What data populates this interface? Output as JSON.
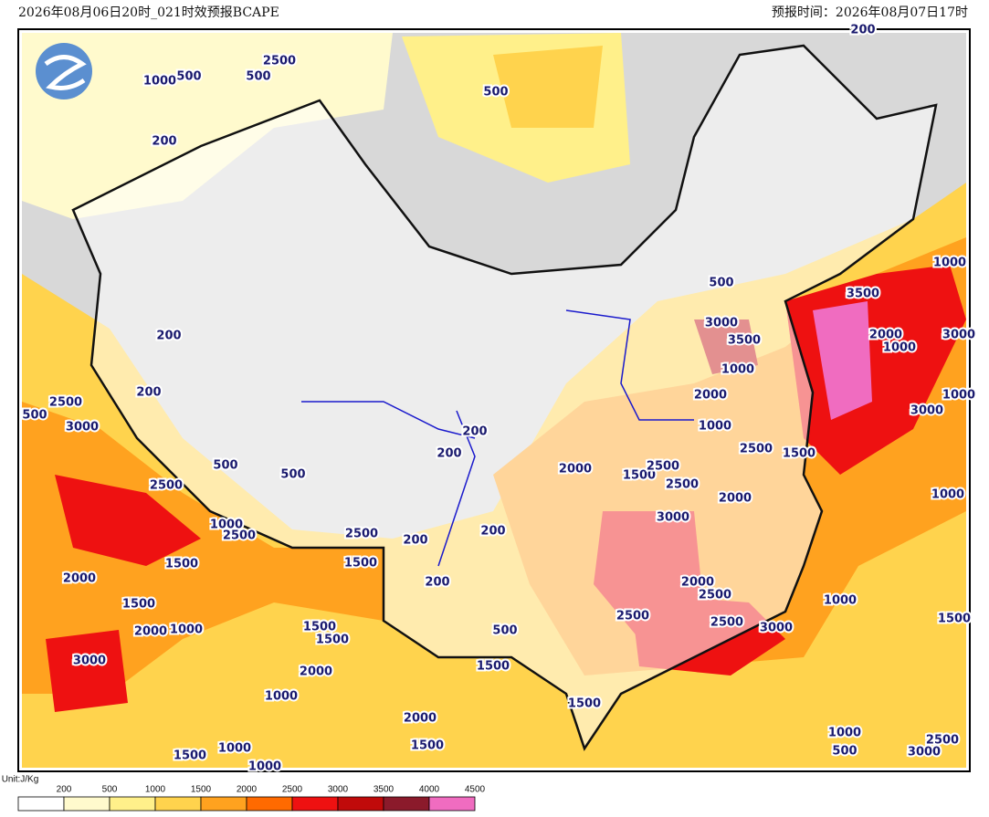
{
  "header": {
    "left": "2026年08月06日20时_021时效预报BCAPE",
    "right": "预报时间：2026年08月07日17时"
  },
  "map": {
    "contour_labels": [
      "1000",
      "500",
      "2500",
      "500",
      "500",
      "200",
      "200",
      "200",
      "200",
      "2500",
      "500",
      "3000",
      "500",
      "500",
      "2500",
      "1000",
      "2500",
      "2500",
      "1500",
      "1500",
      "2000",
      "1500",
      "2000",
      "1000",
      "1500",
      "1500",
      "3000",
      "2000",
      "1000",
      "2000",
      "1500",
      "1500",
      "1000",
      "1000",
      "200",
      "200",
      "200",
      "200",
      "200",
      "500",
      "1500",
      "1500",
      "500",
      "3000",
      "3500",
      "1000",
      "2000",
      "1000",
      "3500",
      "2000",
      "1000",
      "3000",
      "1000",
      "1000",
      "3000",
      "2500",
      "1500",
      "2000",
      "1500",
      "2500",
      "2500",
      "2000",
      "3000",
      "1000",
      "2000",
      "2500",
      "2500",
      "2500",
      "3000",
      "1000",
      "1500",
      "1000",
      "500",
      "2500",
      "3000"
    ]
  },
  "colorbar": {
    "unit": "Unit:J/Kg",
    "ticks": [
      200,
      500,
      1000,
      1500,
      2000,
      2500,
      3000,
      3500,
      4000,
      4500
    ],
    "colors": [
      "#ffffff",
      "#fffacd",
      "#fff08a",
      "#ffd34d",
      "#ffa21f",
      "#ff6a00",
      "#ee1111",
      "#c00a0a",
      "#8b1a2b",
      "#f06cc0"
    ]
  }
}
